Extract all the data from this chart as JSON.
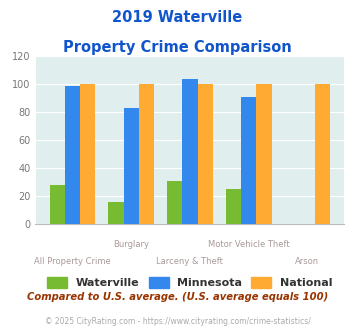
{
  "title_line1": "2019 Waterville",
  "title_line2": "Property Crime Comparison",
  "categories": [
    "All Property Crime",
    "Burglary",
    "Larceny & Theft",
    "Motor Vehicle Theft",
    "Arson"
  ],
  "waterville": [
    28,
    16,
    31,
    25,
    0
  ],
  "minnesota": [
    99,
    83,
    104,
    91,
    0
  ],
  "national": [
    100,
    100,
    100,
    100,
    100
  ],
  "waterville_color": "#77bb33",
  "minnesota_color": "#3388ee",
  "national_color": "#ffaa33",
  "ylim": [
    0,
    120
  ],
  "yticks": [
    0,
    20,
    40,
    60,
    80,
    100,
    120
  ],
  "plot_bg_color": "#e0eeee",
  "fig_bg_color": "#ffffff",
  "footnote": "Compared to U.S. average. (U.S. average equals 100)",
  "copyright": "© 2025 CityRating.com - https://www.cityrating.com/crime-statistics/",
  "legend_labels": [
    "Waterville",
    "Minnesota",
    "National"
  ],
  "title_color": "#1155cc",
  "footnote_color": "#993300",
  "copyright_color": "#aaaaaa",
  "xtick_color": "#aa9999",
  "ytick_color": "#777777"
}
